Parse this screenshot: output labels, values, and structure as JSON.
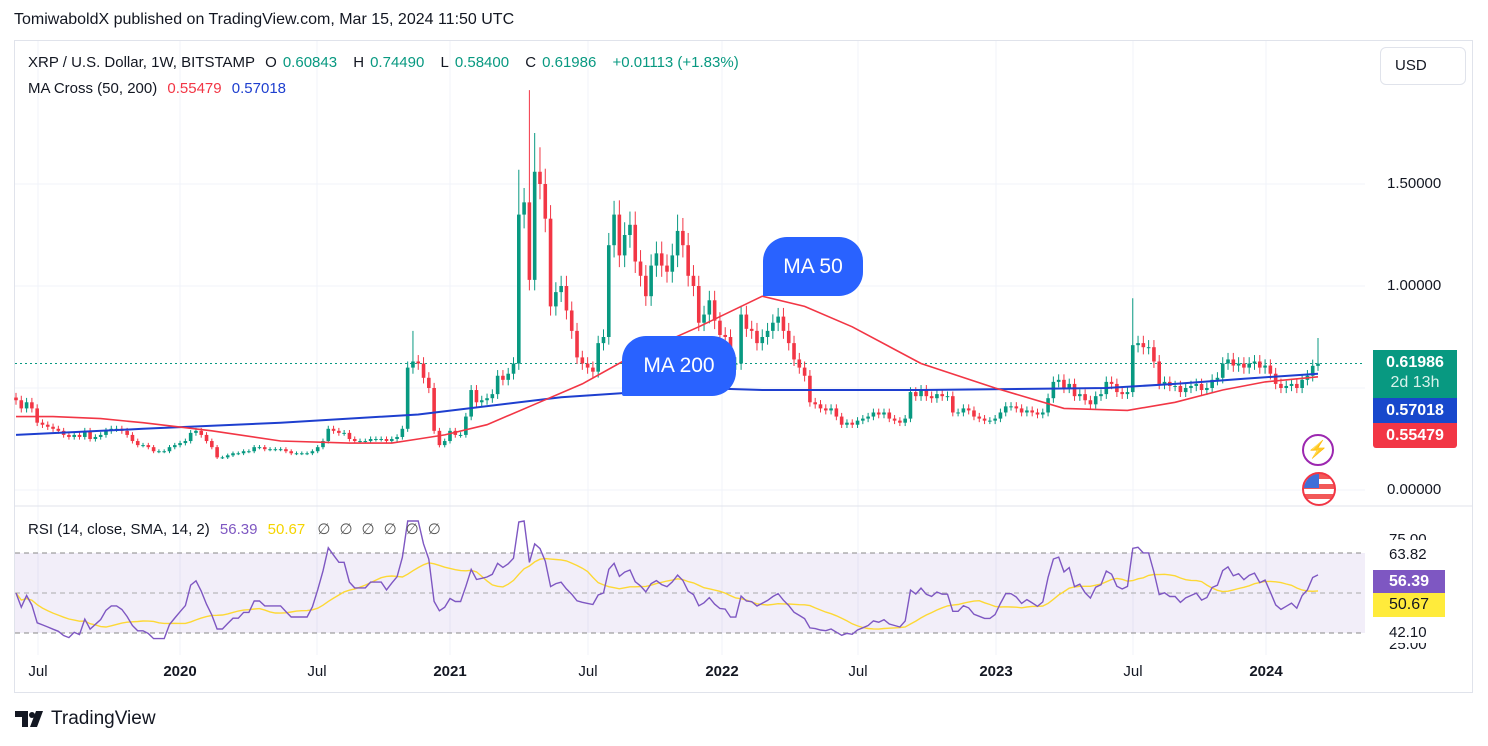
{
  "publisher": "TomiwaboldX published on TradingView.com, Mar 15, 2024 11:50 UTC",
  "legend": {
    "symbol": "XRP / U.S. Dollar, 1W, BITSTAMP",
    "ohlc": [
      {
        "label": "O",
        "value": "0.60843"
      },
      {
        "label": "H",
        "value": "0.74490"
      },
      {
        "label": "L",
        "value": "0.58400"
      },
      {
        "label": "C",
        "value": "0.61986"
      }
    ],
    "change": "+0.01113 (+1.83%)"
  },
  "ma_legend": {
    "label": "MA Cross (50, 200)",
    "ma50": "0.55479",
    "ma200": "0.57018"
  },
  "rsi_legend": {
    "label": "RSI (14, close, SMA, 14, 2)",
    "rsi": "56.39",
    "sma": "50.67",
    "empty": [
      "∅",
      "∅",
      "∅",
      "∅",
      "∅",
      "∅"
    ]
  },
  "currency_button": "USD",
  "price_axis": [
    "1.50000",
    "1.00000",
    "0.00000"
  ],
  "price_labels": {
    "last": "0.61986",
    "countdown": "2d 13h",
    "ma200": "0.57018",
    "ma50": "0.55479"
  },
  "rsi_axis": [
    "75.00",
    "63.82",
    "42.10",
    "25.00"
  ],
  "rsi_labels": {
    "rsi": "56.39",
    "sma": "50.67"
  },
  "annotations": {
    "ma50": "MA 50",
    "ma200": "MA 200"
  },
  "time_axis": [
    "Jul",
    "2020",
    "Jul",
    "2021",
    "Jul",
    "2022",
    "Jul",
    "2023",
    "Jul",
    "2024"
  ],
  "icons": [
    "lightning-icon",
    "us-flag-icon"
  ],
  "footer": "TradingView",
  "colors": {
    "up": "#089981",
    "down": "#f23645",
    "ma50": "#f23645",
    "ma200": "#1e3fcf",
    "rsi": "#7e57c2",
    "rsi_sma": "#fdd835",
    "annotation": "#2962ff"
  },
  "chart_data": {
    "type": "candlestick",
    "interval": "1W",
    "scale": "linear",
    "ylim": [
      0,
      2.2
    ],
    "rsi_bands": [
      30,
      50,
      70
    ],
    "weekly_closes": {
      "2019-06": [
        0.44,
        0.4,
        0.43
      ],
      "2019-07": [
        0.4,
        0.33,
        0.32,
        0.31
      ],
      "2019-08": [
        0.3,
        0.29,
        0.27,
        0.26
      ],
      "2019-09": [
        0.27,
        0.26,
        0.29,
        0.25,
        0.26
      ],
      "2019-10": [
        0.27,
        0.29,
        0.3,
        0.3
      ],
      "2019-11": [
        0.29,
        0.27,
        0.24,
        0.22
      ],
      "2019-12": [
        0.22,
        0.21,
        0.19,
        0.19,
        0.19
      ],
      "2020-01": [
        0.21,
        0.22,
        0.23,
        0.24
      ],
      "2020-02": [
        0.28,
        0.29,
        0.27,
        0.24
      ],
      "2020-03": [
        0.21,
        0.16,
        0.16,
        0.17,
        0.18
      ],
      "2020-04": [
        0.18,
        0.19,
        0.19,
        0.21
      ],
      "2020-05": [
        0.21,
        0.2,
        0.2,
        0.2
      ],
      "2020-06": [
        0.2,
        0.19,
        0.18,
        0.18,
        0.18
      ],
      "2020-07": [
        0.18,
        0.19,
        0.21,
        0.24
      ],
      "2020-08": [
        0.3,
        0.29,
        0.28,
        0.28
      ],
      "2020-09": [
        0.25,
        0.24,
        0.24,
        0.24
      ],
      "2020-10": [
        0.25,
        0.25,
        0.25,
        0.24
      ],
      "2020-11": [
        0.25,
        0.26,
        0.3,
        0.6,
        0.63
      ],
      "2020-12": [
        0.62,
        0.55,
        0.5,
        0.29,
        0.22
      ],
      "2021-01": [
        0.24,
        0.29,
        0.27,
        0.27
      ],
      "2021-02": [
        0.36,
        0.49,
        0.43,
        0.44
      ],
      "2021-03": [
        0.45,
        0.47,
        0.56,
        0.54,
        0.57
      ],
      "2021-04": [
        0.62,
        1.35,
        1.41,
        1.03
      ],
      "2021-05": [
        1.56,
        1.5,
        1.33,
        0.9,
        0.97
      ],
      "2021-06": [
        1.0,
        0.88,
        0.78,
        0.65
      ],
      "2021-07": [
        0.62,
        0.6,
        0.58,
        0.72
      ],
      "2021-08": [
        0.75,
        1.2,
        1.35,
        1.15,
        1.25
      ],
      "2021-09": [
        1.3,
        1.12,
        1.05,
        0.95
      ],
      "2021-10": [
        1.1,
        1.16,
        1.1,
        1.07,
        1.15
      ],
      "2021-11": [
        1.27,
        1.2,
        1.05,
        1.0
      ],
      "2021-12": [
        0.82,
        0.86,
        0.93,
        0.83
      ],
      "2022-01": [
        0.76,
        0.75,
        0.62,
        0.62
      ],
      "2022-02": [
        0.86,
        0.79,
        0.78,
        0.72
      ],
      "2022-03": [
        0.75,
        0.78,
        0.82,
        0.85
      ],
      "2022-04": [
        0.78,
        0.72,
        0.64,
        0.6
      ],
      "2022-05": [
        0.56,
        0.43,
        0.42,
        0.4,
        0.39
      ],
      "2022-06": [
        0.4,
        0.36,
        0.32,
        0.33
      ],
      "2022-07": [
        0.32,
        0.34,
        0.35,
        0.36,
        0.38
      ],
      "2022-08": [
        0.37,
        0.38,
        0.35,
        0.34
      ],
      "2022-09": [
        0.33,
        0.35,
        0.48,
        0.46
      ],
      "2022-10": [
        0.49,
        0.46,
        0.45,
        0.47,
        0.46
      ],
      "2022-11": [
        0.46,
        0.38,
        0.38,
        0.4
      ],
      "2022-12": [
        0.39,
        0.36,
        0.35,
        0.34,
        0.34
      ],
      "2023-01": [
        0.35,
        0.38,
        0.41,
        0.41
      ],
      "2023-02": [
        0.4,
        0.38,
        0.39,
        0.38
      ],
      "2023-03": [
        0.37,
        0.38,
        0.45,
        0.53,
        0.54
      ],
      "2023-04": [
        0.5,
        0.52,
        0.46,
        0.47
      ],
      "2023-05": [
        0.44,
        0.42,
        0.46,
        0.47
      ],
      "2023-06": [
        0.53,
        0.52,
        0.48,
        0.47
      ],
      "2023-07": [
        0.48,
        0.71,
        0.72,
        0.7,
        0.7
      ],
      "2023-08": [
        0.63,
        0.52,
        0.53,
        0.51
      ],
      "2023-09": [
        0.51,
        0.48,
        0.5,
        0.51
      ],
      "2023-10": [
        0.52,
        0.49,
        0.5,
        0.54,
        0.55
      ],
      "2023-11": [
        0.62,
        0.64,
        0.61,
        0.62
      ],
      "2023-12": [
        0.6,
        0.62,
        0.63,
        0.6
      ],
      "2024-01": [
        0.61,
        0.57,
        0.52,
        0.5,
        0.51
      ],
      "2024-02": [
        0.52,
        0.5,
        0.54,
        0.56
      ],
      "2024-03": [
        0.60873,
        0.61986
      ]
    },
    "notable_highs": {
      "2020-11-4": 0.78,
      "2021-04-1": 1.57,
      "2021-04-3": 1.96,
      "2021-05-0": 1.75,
      "2021-05-1": 1.68,
      "2021-08-3": 1.42,
      "2021-11-0": 1.35,
      "2023-07-1": 0.94,
      "2024-03-1": 0.7449
    },
    "last_bar": {
      "open": 0.60843,
      "high": 0.7449,
      "low": 0.584,
      "close": 0.61986
    },
    "ma50": {
      "2019-06": 0.36,
      "2019-08": 0.36,
      "2019-10": 0.35,
      "2019-12": 0.33,
      "2020-03": 0.29,
      "2020-06": 0.24,
      "2020-09": 0.23,
      "2020-11": 0.23,
      "2020-12": 0.25,
      "2021-01": 0.27,
      "2021-03": 0.32,
      "2021-05": 0.42,
      "2021-07": 0.52,
      "2021-09": 0.65,
      "2021-12": 0.8,
      "2022-03": 0.95,
      "2022-05": 0.9,
      "2022-07": 0.8,
      "2022-10": 0.62,
      "2023-01": 0.5,
      "2023-04": 0.4,
      "2023-07": 0.39,
      "2023-09": 0.43,
      "2023-11": 0.49,
      "2024-01": 0.53,
      "2024-03": 0.555
    },
    "ma200": {
      "2019-06": 0.27,
      "2019-12": 0.3,
      "2020-06": 0.33,
      "2020-12": 0.37,
      "2021-06": 0.455,
      "2021-12": 0.5,
      "2022-03": 0.49,
      "2022-10": 0.49,
      "2023-06": 0.5,
      "2023-09": 0.52,
      "2023-12": 0.545,
      "2024-03": 0.57
    }
  }
}
